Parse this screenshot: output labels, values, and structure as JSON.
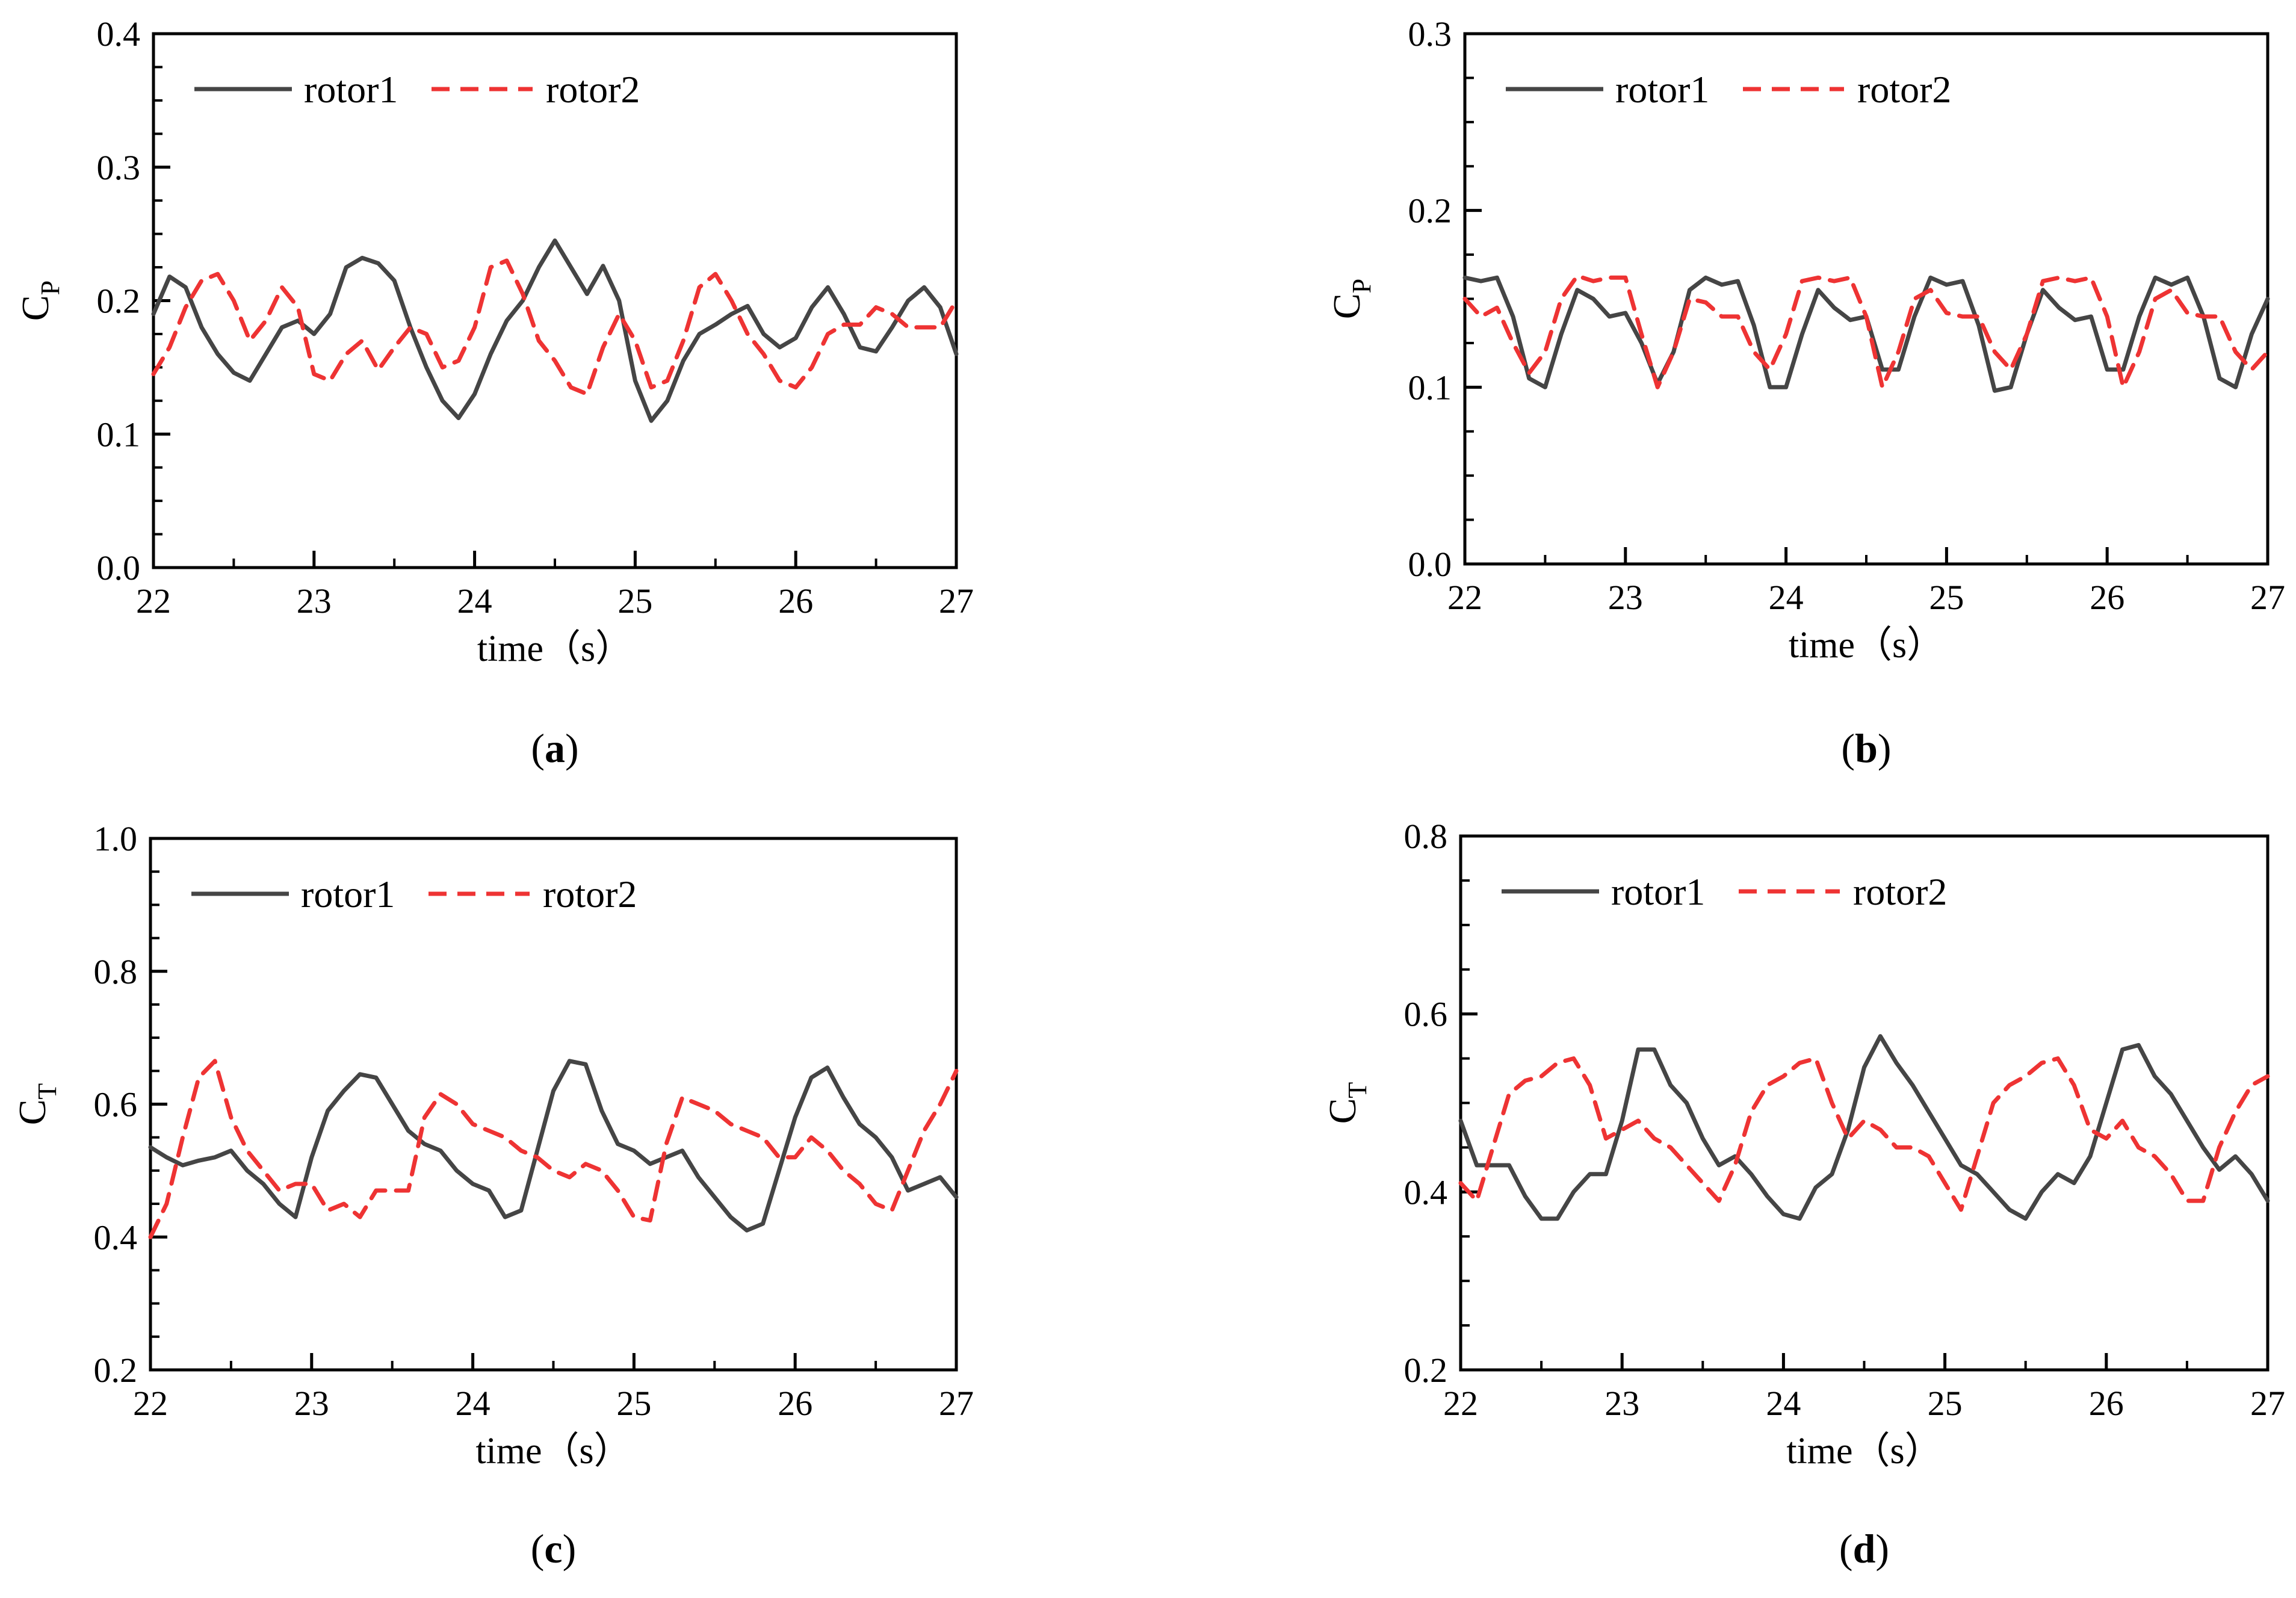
{
  "figure": {
    "caption_note": "Four-panel figure"
  },
  "chart_data": [
    {
      "type": "line",
      "panel_label": "a",
      "ylabel_main": "C",
      "ylabel_sub": "P",
      "xlabel": "time（s）",
      "xlim": [
        22,
        27
      ],
      "ylim": [
        0.0,
        0.4
      ],
      "xticks": [
        22,
        23,
        24,
        25,
        26,
        27
      ],
      "yticks": [
        0.0,
        0.1,
        0.2,
        0.3,
        0.4
      ],
      "yticks_text": [
        "0.0",
        "0.1",
        "0.2",
        "0.3",
        "0.4"
      ],
      "x": [
        22.0,
        22.1,
        22.2,
        22.3,
        22.4,
        22.5,
        22.6,
        22.7,
        22.8,
        22.9,
        23.0,
        23.1,
        23.2,
        23.3,
        23.4,
        23.5,
        23.6,
        23.7,
        23.8,
        23.9,
        24.0,
        24.1,
        24.2,
        24.3,
        24.4,
        24.5,
        24.6,
        24.7,
        24.8,
        24.9,
        25.0,
        25.1,
        25.2,
        25.3,
        25.4,
        25.5,
        25.6,
        25.7,
        25.8,
        25.9,
        26.0,
        26.1,
        26.2,
        26.3,
        26.4,
        26.5,
        26.6,
        26.7,
        26.8,
        26.9,
        27.0
      ],
      "series": [
        {
          "name": "rotor1",
          "color": "#454545",
          "dash": "solid",
          "values": [
            0.19,
            0.218,
            0.21,
            0.18,
            0.16,
            0.146,
            0.14,
            0.16,
            0.18,
            0.185,
            0.175,
            0.19,
            0.225,
            0.232,
            0.228,
            0.215,
            0.18,
            0.15,
            0.125,
            0.112,
            0.13,
            0.16,
            0.185,
            0.2,
            0.225,
            0.245,
            0.225,
            0.205,
            0.226,
            0.2,
            0.14,
            0.11,
            0.125,
            0.155,
            0.175,
            0.182,
            0.19,
            0.196,
            0.175,
            0.165,
            0.172,
            0.195,
            0.21,
            0.19,
            0.165,
            0.162,
            0.18,
            0.2,
            0.21,
            0.195,
            0.16
          ]
        },
        {
          "name": "rotor2",
          "color": "#ee3333",
          "dash": "dashed",
          "values": [
            0.145,
            0.165,
            0.195,
            0.215,
            0.22,
            0.2,
            0.17,
            0.185,
            0.21,
            0.195,
            0.145,
            0.14,
            0.16,
            0.17,
            0.148,
            0.165,
            0.18,
            0.175,
            0.15,
            0.155,
            0.18,
            0.225,
            0.23,
            0.205,
            0.17,
            0.155,
            0.135,
            0.13,
            0.165,
            0.19,
            0.17,
            0.135,
            0.14,
            0.17,
            0.21,
            0.22,
            0.2,
            0.175,
            0.16,
            0.14,
            0.135,
            0.15,
            0.175,
            0.182,
            0.182,
            0.195,
            0.19,
            0.18,
            0.18,
            0.18,
            0.2
          ]
        }
      ],
      "legend": [
        "rotor1",
        "rotor2"
      ]
    },
    {
      "type": "line",
      "panel_label": "b",
      "ylabel_main": "C",
      "ylabel_sub": "P",
      "xlabel": "time（s）",
      "xlim": [
        22,
        27
      ],
      "ylim": [
        0.0,
        0.3
      ],
      "xticks": [
        22,
        23,
        24,
        25,
        26,
        27
      ],
      "yticks": [
        0.0,
        0.1,
        0.2,
        0.3
      ],
      "yticks_text": [
        "0.0",
        "0.1",
        "0.2",
        "0.3"
      ],
      "x": [
        22.0,
        22.1,
        22.2,
        22.3,
        22.4,
        22.5,
        22.6,
        22.7,
        22.8,
        22.9,
        23.0,
        23.1,
        23.2,
        23.3,
        23.4,
        23.5,
        23.6,
        23.7,
        23.8,
        23.9,
        24.0,
        24.1,
        24.2,
        24.3,
        24.4,
        24.5,
        24.6,
        24.7,
        24.8,
        24.9,
        25.0,
        25.1,
        25.2,
        25.3,
        25.4,
        25.5,
        25.6,
        25.7,
        25.8,
        25.9,
        26.0,
        26.1,
        26.2,
        26.3,
        26.4,
        26.5,
        26.6,
        26.7,
        26.8,
        26.9,
        27.0
      ],
      "series": [
        {
          "name": "rotor1",
          "color": "#454545",
          "dash": "solid",
          "values": [
            0.162,
            0.16,
            0.162,
            0.14,
            0.105,
            0.1,
            0.13,
            0.155,
            0.15,
            0.14,
            0.142,
            0.125,
            0.102,
            0.12,
            0.155,
            0.162,
            0.158,
            0.16,
            0.135,
            0.1,
            0.1,
            0.13,
            0.155,
            0.145,
            0.138,
            0.14,
            0.11,
            0.11,
            0.14,
            0.162,
            0.158,
            0.16,
            0.135,
            0.098,
            0.1,
            0.13,
            0.155,
            0.145,
            0.138,
            0.14,
            0.11,
            0.11,
            0.14,
            0.162,
            0.158,
            0.162,
            0.14,
            0.105,
            0.1,
            0.13,
            0.15
          ]
        },
        {
          "name": "rotor2",
          "color": "#ee3333",
          "dash": "dashed",
          "values": [
            0.15,
            0.14,
            0.145,
            0.125,
            0.108,
            0.12,
            0.15,
            0.163,
            0.16,
            0.162,
            0.162,
            0.13,
            0.1,
            0.12,
            0.15,
            0.148,
            0.14,
            0.14,
            0.12,
            0.11,
            0.13,
            0.16,
            0.162,
            0.16,
            0.162,
            0.14,
            0.1,
            0.12,
            0.15,
            0.155,
            0.142,
            0.14,
            0.14,
            0.12,
            0.11,
            0.13,
            0.16,
            0.162,
            0.16,
            0.162,
            0.14,
            0.1,
            0.12,
            0.15,
            0.155,
            0.142,
            0.14,
            0.14,
            0.12,
            0.11,
            0.12
          ]
        }
      ],
      "legend": [
        "rotor1",
        "rotor2"
      ]
    },
    {
      "type": "line",
      "panel_label": "c",
      "ylabel_main": "C",
      "ylabel_sub": "T",
      "xlabel": "time（s）",
      "xlim": [
        22,
        27
      ],
      "ylim": [
        0.2,
        1.0
      ],
      "xticks": [
        22,
        23,
        24,
        25,
        26,
        27
      ],
      "yticks": [
        0.2,
        0.4,
        0.6,
        0.8,
        1.0
      ],
      "yticks_text": [
        "0.2",
        "0.4",
        "0.6",
        "0.8",
        "1.0"
      ],
      "x": [
        22.0,
        22.1,
        22.2,
        22.3,
        22.4,
        22.5,
        22.6,
        22.7,
        22.8,
        22.9,
        23.0,
        23.1,
        23.2,
        23.3,
        23.4,
        23.5,
        23.6,
        23.7,
        23.8,
        23.9,
        24.0,
        24.1,
        24.2,
        24.3,
        24.4,
        24.5,
        24.6,
        24.7,
        24.8,
        24.9,
        25.0,
        25.1,
        25.2,
        25.3,
        25.4,
        25.5,
        25.6,
        25.7,
        25.8,
        25.9,
        26.0,
        26.1,
        26.2,
        26.3,
        26.4,
        26.5,
        26.6,
        26.7,
        26.8,
        26.9,
        27.0
      ],
      "series": [
        {
          "name": "rotor1",
          "color": "#454545",
          "dash": "solid",
          "values": [
            0.535,
            0.52,
            0.508,
            0.515,
            0.52,
            0.53,
            0.5,
            0.48,
            0.45,
            0.43,
            0.52,
            0.59,
            0.62,
            0.645,
            0.64,
            0.6,
            0.56,
            0.54,
            0.53,
            0.5,
            0.48,
            0.47,
            0.43,
            0.44,
            0.53,
            0.62,
            0.665,
            0.66,
            0.59,
            0.54,
            0.53,
            0.51,
            0.52,
            0.53,
            0.49,
            0.46,
            0.43,
            0.41,
            0.42,
            0.5,
            0.58,
            0.64,
            0.655,
            0.61,
            0.57,
            0.55,
            0.52,
            0.47,
            0.48,
            0.49,
            0.46
          ]
        },
        {
          "name": "rotor2",
          "color": "#ee3333",
          "dash": "dashed",
          "values": [
            0.4,
            0.45,
            0.55,
            0.64,
            0.665,
            0.58,
            0.53,
            0.5,
            0.47,
            0.48,
            0.48,
            0.44,
            0.45,
            0.43,
            0.47,
            0.47,
            0.47,
            0.58,
            0.615,
            0.6,
            0.57,
            0.56,
            0.55,
            0.53,
            0.52,
            0.5,
            0.49,
            0.51,
            0.5,
            0.47,
            0.43,
            0.425,
            0.54,
            0.61,
            0.6,
            0.59,
            0.57,
            0.56,
            0.55,
            0.52,
            0.52,
            0.55,
            0.53,
            0.5,
            0.48,
            0.45,
            0.44,
            0.5,
            0.56,
            0.6,
            0.65
          ]
        }
      ],
      "legend": [
        "rotor1",
        "rotor2"
      ]
    },
    {
      "type": "line",
      "panel_label": "d",
      "ylabel_main": "C",
      "ylabel_sub": "T",
      "xlabel": "time（s）",
      "xlim": [
        22,
        27
      ],
      "ylim": [
        0.2,
        0.8
      ],
      "xticks": [
        22,
        23,
        24,
        25,
        26,
        27
      ],
      "yticks": [
        0.2,
        0.4,
        0.6,
        0.8
      ],
      "yticks_text": [
        "0.2",
        "0.4",
        "0.6",
        "0.8"
      ],
      "x": [
        22.0,
        22.1,
        22.2,
        22.3,
        22.4,
        22.5,
        22.6,
        22.7,
        22.8,
        22.9,
        23.0,
        23.1,
        23.2,
        23.3,
        23.4,
        23.5,
        23.6,
        23.7,
        23.8,
        23.9,
        24.0,
        24.1,
        24.2,
        24.3,
        24.4,
        24.5,
        24.6,
        24.7,
        24.8,
        24.9,
        25.0,
        25.1,
        25.2,
        25.3,
        25.4,
        25.5,
        25.6,
        25.7,
        25.8,
        25.9,
        26.0,
        26.1,
        26.2,
        26.3,
        26.4,
        26.5,
        26.6,
        26.7,
        26.8,
        26.9,
        27.0
      ],
      "series": [
        {
          "name": "rotor1",
          "color": "#454545",
          "dash": "solid",
          "values": [
            0.48,
            0.43,
            0.43,
            0.43,
            0.395,
            0.37,
            0.37,
            0.4,
            0.42,
            0.42,
            0.48,
            0.56,
            0.56,
            0.52,
            0.5,
            0.46,
            0.43,
            0.44,
            0.42,
            0.395,
            0.375,
            0.37,
            0.405,
            0.42,
            0.47,
            0.54,
            0.575,
            0.545,
            0.52,
            0.49,
            0.46,
            0.43,
            0.42,
            0.4,
            0.38,
            0.37,
            0.4,
            0.42,
            0.41,
            0.44,
            0.5,
            0.56,
            0.565,
            0.53,
            0.51,
            0.48,
            0.45,
            0.425,
            0.44,
            0.42,
            0.39
          ]
        },
        {
          "name": "rotor2",
          "color": "#ee3333",
          "dash": "dashed",
          "values": [
            0.41,
            0.39,
            0.45,
            0.51,
            0.525,
            0.53,
            0.545,
            0.55,
            0.52,
            0.46,
            0.47,
            0.48,
            0.46,
            0.45,
            0.43,
            0.41,
            0.39,
            0.43,
            0.49,
            0.52,
            0.53,
            0.545,
            0.55,
            0.5,
            0.46,
            0.48,
            0.47,
            0.45,
            0.45,
            0.44,
            0.41,
            0.38,
            0.44,
            0.5,
            0.52,
            0.53,
            0.545,
            0.55,
            0.52,
            0.47,
            0.46,
            0.48,
            0.45,
            0.44,
            0.42,
            0.39,
            0.39,
            0.45,
            0.49,
            0.52,
            0.53
          ]
        }
      ],
      "legend": [
        "rotor1",
        "rotor2"
      ]
    }
  ]
}
